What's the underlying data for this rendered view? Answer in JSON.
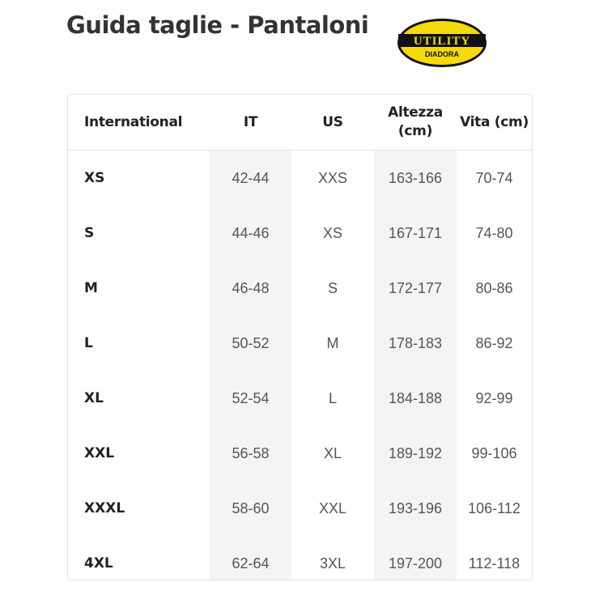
{
  "title": "Guida taglie - Pantaloni",
  "logo": {
    "text": "UTILITY",
    "subtext": "DIADORA",
    "colors": {
      "yellow": "#f5d90a",
      "black": "#111111"
    }
  },
  "table": {
    "headers": [
      "International",
      "IT",
      "US",
      "Altezza (cm)",
      "Vita (cm)"
    ],
    "rows": [
      [
        "XS",
        "42-44",
        "XXS",
        "163-166",
        "70-74"
      ],
      [
        "S",
        "44-46",
        "XS",
        "167-171",
        "74-80"
      ],
      [
        "M",
        "46-48",
        "S",
        "172-177",
        "80-86"
      ],
      [
        "L",
        "50-52",
        "M",
        "178-183",
        "86-92"
      ],
      [
        "XL",
        "52-54",
        "L",
        "184-188",
        "92-99"
      ],
      [
        "XXL",
        "56-58",
        "XL",
        "189-192",
        "99-106"
      ],
      [
        "XXXL",
        "58-60",
        "XXL",
        "193-196",
        "106-112"
      ],
      [
        "4XL",
        "62-64",
        "3XL",
        "197-200",
        "112-118"
      ]
    ]
  }
}
